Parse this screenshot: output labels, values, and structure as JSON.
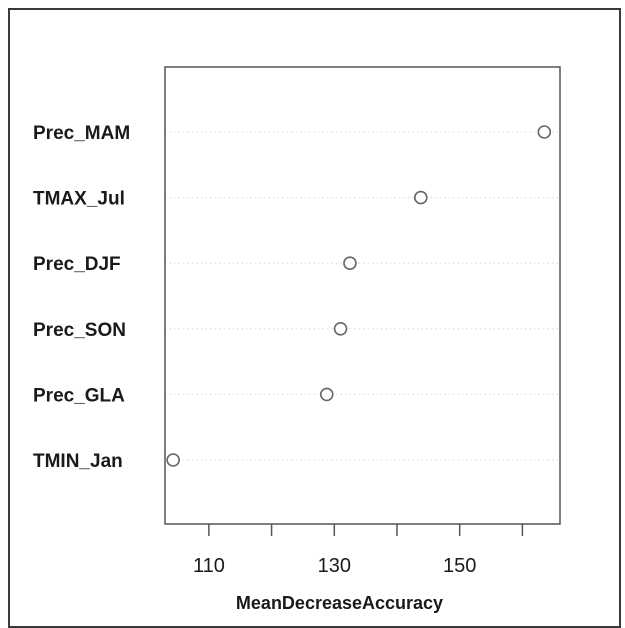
{
  "chart_data": {
    "type": "scatter",
    "title": "",
    "xlabel": "MeanDecreaseAccuracy",
    "ylabel": "",
    "categories": [
      "Prec_MAM",
      "TMAX_Jul",
      "Prec_DJF",
      "Prec_SON",
      "Prec_GLA",
      "TMIN_Jan"
    ],
    "values": [
      163.5,
      143.8,
      132.5,
      131.0,
      128.8,
      104.3
    ],
    "xlim": [
      103,
      166
    ],
    "x_ticks": [
      110,
      120,
      130,
      140,
      150,
      160
    ],
    "x_tick_labels": [
      "110",
      "",
      "130",
      "",
      "150",
      ""
    ],
    "grid": "horizontal dotted",
    "legend": "none",
    "colors": {
      "axes": "#555555",
      "marker": "#666666",
      "text": "#1a1a1a",
      "grid": "#d8d8d8"
    }
  }
}
